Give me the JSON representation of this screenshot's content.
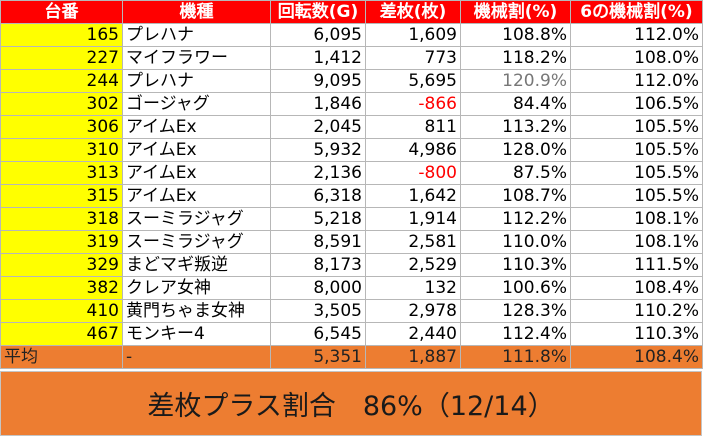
{
  "colors": {
    "header_bg": "#ff0000",
    "header_text": "#ffffff",
    "id_cell_bg": "#ffff00",
    "avg_bg": "#ed7d31",
    "negative_text": "#ff0000"
  },
  "table": {
    "headers": [
      "台番",
      "機種",
      "回転数(G)",
      "差枚(枚)",
      "機械割(%)",
      "6の機械割(%)"
    ],
    "rows": [
      {
        "no": "165",
        "machine": "プレハナ",
        "spins": "6,095",
        "diff": "1,609",
        "rate": "108.8%",
        "rate6": "112.0%"
      },
      {
        "no": "227",
        "machine": "マイフラワー",
        "spins": "1,412",
        "diff": "773",
        "rate": "118.2%",
        "rate6": "108.0%"
      },
      {
        "no": "244",
        "machine": "プレハナ",
        "spins": "9,095",
        "diff": "5,695",
        "rate": "120.9%",
        "rate6": "112.0%"
      },
      {
        "no": "302",
        "machine": "ゴージャグ",
        "spins": "1,846",
        "diff": "-866",
        "rate": "84.4%",
        "rate6": "106.5%"
      },
      {
        "no": "306",
        "machine": "アイムEx",
        "spins": "2,045",
        "diff": "811",
        "rate": "113.2%",
        "rate6": "105.5%"
      },
      {
        "no": "310",
        "machine": "アイムEx",
        "spins": "5,932",
        "diff": "4,986",
        "rate": "128.0%",
        "rate6": "105.5%"
      },
      {
        "no": "313",
        "machine": "アイムEx",
        "spins": "2,136",
        "diff": "-800",
        "rate": "87.5%",
        "rate6": "105.5%"
      },
      {
        "no": "315",
        "machine": "アイムEx",
        "spins": "6,318",
        "diff": "1,642",
        "rate": "108.7%",
        "rate6": "105.5%"
      },
      {
        "no": "318",
        "machine": "スーミラジャグ",
        "spins": "5,218",
        "diff": "1,914",
        "rate": "112.2%",
        "rate6": "108.1%"
      },
      {
        "no": "319",
        "machine": "スーミラジャグ",
        "spins": "8,591",
        "diff": "2,581",
        "rate": "110.0%",
        "rate6": "108.1%"
      },
      {
        "no": "329",
        "machine": "まどマギ叛逆",
        "spins": "8,173",
        "diff": "2,529",
        "rate": "110.3%",
        "rate6": "111.5%"
      },
      {
        "no": "382",
        "machine": "クレア女神",
        "spins": "8,000",
        "diff": "132",
        "rate": "100.6%",
        "rate6": "108.4%"
      },
      {
        "no": "410",
        "machine": "黄門ちゃま女神",
        "spins": "3,505",
        "diff": "2,978",
        "rate": "128.3%",
        "rate6": "110.2%"
      },
      {
        "no": "467",
        "machine": "モンキー4",
        "spins": "6,545",
        "diff": "2,440",
        "rate": "112.4%",
        "rate6": "110.3%"
      }
    ],
    "average": {
      "label": "平均",
      "machine": "-",
      "spins": "5,351",
      "diff": "1,887",
      "rate": "111.8%",
      "rate6": "108.4%"
    }
  },
  "summary": "差枚プラス割合　86%（12/14）"
}
